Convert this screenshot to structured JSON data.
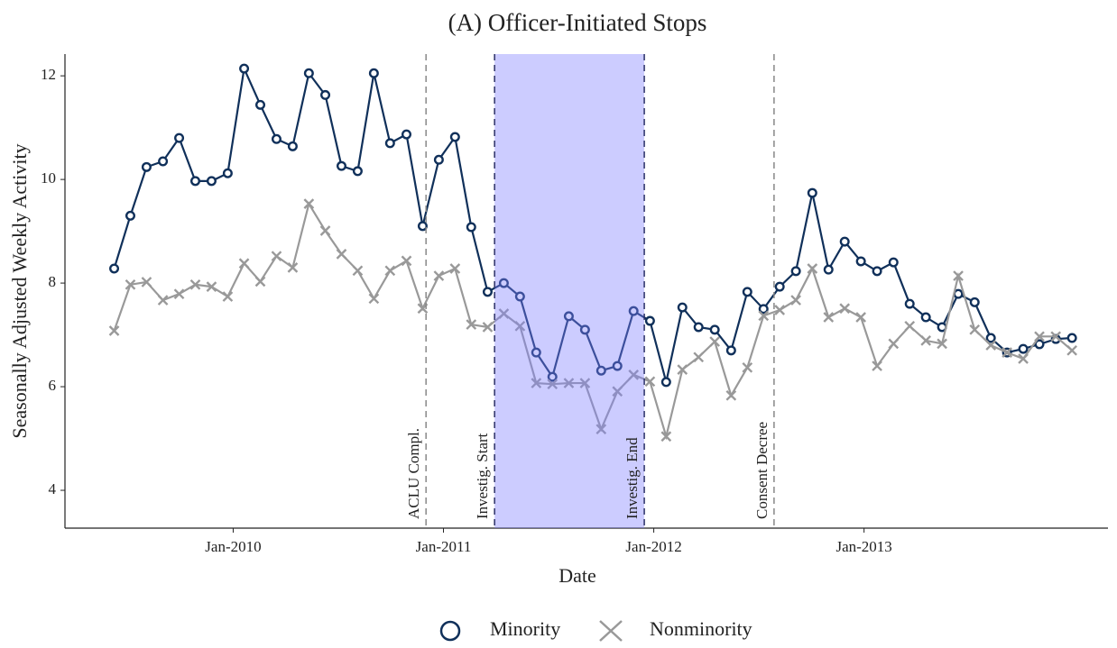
{
  "chart_data": {
    "type": "line",
    "title": "(A) Officer-Initiated Stops",
    "xlabel": "Date",
    "ylabel": "Seasonally Adjusted Weekly Activity",
    "x": [
      2009.434,
      2009.511,
      2009.588,
      2009.666,
      2009.743,
      2009.82,
      2009.897,
      2009.974,
      2010.052,
      2010.129,
      2010.206,
      2010.283,
      2010.36,
      2010.438,
      2010.515,
      2010.592,
      2010.669,
      2010.746,
      2010.824,
      2010.901,
      2010.978,
      2011.055,
      2011.132,
      2011.21,
      2011.287,
      2011.364,
      2011.441,
      2011.518,
      2011.596,
      2011.673,
      2011.75,
      2011.827,
      2011.904,
      2011.982,
      2012.059,
      2012.136,
      2012.213,
      2012.29,
      2012.368,
      2012.445,
      2012.522,
      2012.599,
      2012.676,
      2012.754,
      2012.831,
      2012.908,
      2012.985,
      2013.062,
      2013.14,
      2013.217,
      2013.294,
      2013.371,
      2013.448,
      2013.526,
      2013.603,
      2013.68,
      2013.757,
      2013.834,
      2013.912,
      2013.989
    ],
    "series": [
      {
        "name": "Minority",
        "color": "#10305a",
        "marker": "circle",
        "values": [
          8.28,
          9.3,
          10.24,
          10.35,
          10.8,
          9.97,
          9.97,
          10.12,
          12.14,
          11.44,
          10.78,
          10.64,
          12.05,
          11.63,
          10.26,
          10.16,
          12.05,
          10.7,
          10.87,
          9.1,
          10.38,
          10.82,
          9.08,
          7.83,
          8.0,
          7.74,
          6.66,
          6.19,
          7.36,
          7.1,
          6.31,
          6.4,
          7.46,
          7.27,
          6.09,
          7.53,
          7.15,
          7.1,
          6.7,
          7.83,
          7.5,
          7.93,
          8.23,
          9.74,
          8.26,
          8.8,
          8.42,
          8.23,
          8.4,
          7.6,
          7.34,
          7.15,
          7.79,
          7.63,
          6.94,
          6.66,
          6.73,
          6.82,
          6.92,
          6.94
        ]
      },
      {
        "name": "Nonminority",
        "color": "#999999",
        "marker": "x",
        "values": [
          7.08,
          7.97,
          8.02,
          7.67,
          7.79,
          7.97,
          7.93,
          7.74,
          8.38,
          8.03,
          8.52,
          8.3,
          9.53,
          9.01,
          8.56,
          8.24,
          7.7,
          8.24,
          8.43,
          7.51,
          8.14,
          8.28,
          7.2,
          7.15,
          7.41,
          7.17,
          6.07,
          6.05,
          6.07,
          6.07,
          5.18,
          5.91,
          6.23,
          6.1,
          5.04,
          6.33,
          6.57,
          6.87,
          5.83,
          6.37,
          7.37,
          7.48,
          7.67,
          8.28,
          7.34,
          7.51,
          7.34,
          6.4,
          6.83,
          7.17,
          6.89,
          6.83,
          8.14,
          7.1,
          6.8,
          6.66,
          6.54,
          6.97,
          6.97,
          6.7
        ]
      }
    ],
    "events": [
      {
        "label": "ACLU Compl.",
        "x": 2010.917,
        "color": "#888888"
      },
      {
        "label": "Investig. Start",
        "x": 2011.243,
        "color": "#2a2f66"
      },
      {
        "label": "Investig. End",
        "x": 2011.955,
        "color": "#2a2f66"
      },
      {
        "label": "Consent Decree",
        "x": 2012.572,
        "color": "#888888"
      }
    ],
    "shade_color": "#8080ff",
    "xlim": [
      2009.2,
      2014.16
    ],
    "xticks": [
      {
        "value": 2010,
        "label": "Jan-2010"
      },
      {
        "value": 2011,
        "label": "Jan-2011"
      },
      {
        "value": 2012,
        "label": "Jan-2012"
      },
      {
        "value": 2013,
        "label": "Jan-2013"
      }
    ],
    "ylim": [
      3.27,
      12.42
    ],
    "yticks": [
      4,
      6,
      8,
      10,
      12
    ],
    "legend": "bottom"
  }
}
